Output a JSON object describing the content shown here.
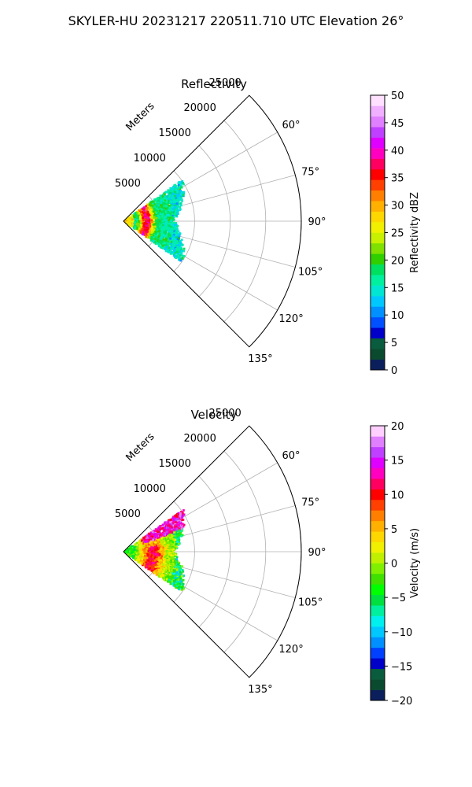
{
  "suptitle": "SKYLER-HU  20231217  220511.710 UTC Elevation 26°",
  "chart_data": [
    {
      "type": "heatmap",
      "title": "Reflectivity",
      "range_label": "Meters",
      "range_ticks": [
        5000,
        10000,
        15000,
        20000,
        25000
      ],
      "range_max": 25000,
      "azimuth_ticks": [
        "60°",
        "75°",
        "90°",
        "105°",
        "120°",
        "135°"
      ],
      "azimuth_range": [
        45,
        135
      ],
      "colorbar": {
        "label": "Reflectivity dBZ",
        "min": 0,
        "max": 50,
        "ticks": [
          "0",
          "5",
          "10",
          "15",
          "20",
          "25",
          "30",
          "35",
          "40",
          "45",
          "50"
        ],
        "colors": [
          "#0b1f5c",
          "#0a4a2e",
          "#0a5c3e",
          "#0000c8",
          "#0050ff",
          "#0090ff",
          "#00c8ff",
          "#00e6d2",
          "#00f0a0",
          "#00e060",
          "#30d000",
          "#80e000",
          "#c8f000",
          "#f0f000",
          "#ffd700",
          "#ffb000",
          "#ff8000",
          "#ff4000",
          "#ff0000",
          "#ff0060",
          "#ff00c0",
          "#e000ff",
          "#c040ff",
          "#e080ff",
          "#f0b0ff",
          "#ffe0ff"
        ]
      },
      "echo_extent_m": [
        0,
        10000
      ],
      "echo_azimuth_range": [
        55,
        125
      ],
      "field": "reflectivity"
    },
    {
      "type": "heatmap",
      "title": "Velocity",
      "range_label": "Meters",
      "range_ticks": [
        5000,
        10000,
        15000,
        20000,
        25000
      ],
      "range_max": 25000,
      "azimuth_ticks": [
        "60°",
        "75°",
        "90°",
        "105°",
        "120°",
        "135°"
      ],
      "azimuth_range": [
        45,
        135
      ],
      "colorbar": {
        "label": "Velocity (m/s)",
        "min": -20,
        "max": 20,
        "ticks": [
          "−20",
          "−15",
          "−10",
          "−5",
          "0",
          "5",
          "10",
          "15",
          "20"
        ],
        "colors": [
          "#0b1f5c",
          "#0a4a2e",
          "#0a5c3e",
          "#0000c8",
          "#0040ff",
          "#0090ff",
          "#00c8ff",
          "#00f0f0",
          "#00f0a0",
          "#00e040",
          "#00ff00",
          "#40e000",
          "#80f000",
          "#c0f000",
          "#f0f000",
          "#ffd700",
          "#ffb000",
          "#ff8000",
          "#ff4000",
          "#ff0000",
          "#ff0060",
          "#ff00c0",
          "#e000ff",
          "#c040ff",
          "#e080ff",
          "#ffd0ff"
        ]
      },
      "echo_extent_m": [
        0,
        10000
      ],
      "echo_azimuth_range": [
        55,
        125
      ],
      "field": "velocity"
    }
  ]
}
